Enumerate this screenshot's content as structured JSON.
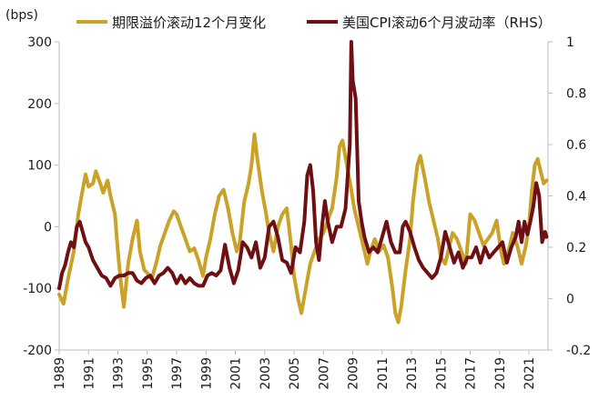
{
  "chart_data": {
    "type": "line",
    "unit_label": "(bps)",
    "right_axis_tag": "RHS",
    "legend": [
      {
        "name": "期限溢价滚动12个月变化",
        "color": "#C9A227",
        "axis": "left"
      },
      {
        "name": "美国CPI滚动6个月波动率（RHS）",
        "color": "#6E0F14",
        "axis": "right"
      }
    ],
    "left_axis": {
      "min": -200,
      "max": 300,
      "ticks": [
        "300",
        "200",
        "100",
        "0",
        "-100",
        "-200"
      ],
      "tick_values": [
        300,
        200,
        100,
        0,
        -100,
        -200
      ]
    },
    "right_axis": {
      "min": -0.2,
      "max": 1.0,
      "ticks": [
        "1",
        "0.8",
        "0.6",
        "0.4",
        "0.2",
        "0",
        "-0.2"
      ],
      "tick_values": [
        1,
        0.8,
        0.6,
        0.4,
        0.2,
        0,
        -0.2
      ]
    },
    "x_axis": {
      "min": 1989,
      "max": 2022.3,
      "ticks": [
        "1989",
        "1991",
        "1993",
        "1995",
        "1997",
        "1999",
        "2001",
        "2003",
        "2005",
        "2007",
        "2009",
        "2011",
        "2013",
        "2015",
        "2017",
        "2019",
        "2021"
      ],
      "tick_values": [
        1989,
        1991,
        1993,
        1995,
        1997,
        1999,
        2001,
        2003,
        2005,
        2007,
        2009,
        2011,
        2013,
        2015,
        2017,
        2019,
        2021
      ]
    },
    "series": [
      {
        "name": "期限溢价滚动12个月变化",
        "axis": "left",
        "points": [
          [
            1989.0,
            -110
          ],
          [
            1989.3,
            -125
          ],
          [
            1989.6,
            -85
          ],
          [
            1990.0,
            -40
          ],
          [
            1990.3,
            20
          ],
          [
            1990.6,
            60
          ],
          [
            1990.8,
            85
          ],
          [
            1991.0,
            65
          ],
          [
            1991.3,
            70
          ],
          [
            1991.5,
            90
          ],
          [
            1991.8,
            70
          ],
          [
            1992.0,
            55
          ],
          [
            1992.3,
            75
          ],
          [
            1992.5,
            50
          ],
          [
            1992.8,
            20
          ],
          [
            1993.0,
            -40
          ],
          [
            1993.2,
            -90
          ],
          [
            1993.4,
            -130
          ],
          [
            1993.7,
            -60
          ],
          [
            1994.0,
            -20
          ],
          [
            1994.3,
            10
          ],
          [
            1994.5,
            -40
          ],
          [
            1994.8,
            -70
          ],
          [
            1995.0,
            -75
          ],
          [
            1995.3,
            -85
          ],
          [
            1995.6,
            -60
          ],
          [
            1995.9,
            -30
          ],
          [
            1996.2,
            -10
          ],
          [
            1996.5,
            10
          ],
          [
            1996.8,
            25
          ],
          [
            1997.0,
            20
          ],
          [
            1997.3,
            0
          ],
          [
            1997.6,
            -20
          ],
          [
            1997.9,
            -40
          ],
          [
            1998.2,
            -35
          ],
          [
            1998.5,
            -55
          ],
          [
            1998.8,
            -80
          ],
          [
            1999.0,
            -50
          ],
          [
            1999.3,
            -20
          ],
          [
            1999.6,
            20
          ],
          [
            1999.9,
            50
          ],
          [
            2000.2,
            60
          ],
          [
            2000.5,
            30
          ],
          [
            2000.8,
            -10
          ],
          [
            2001.1,
            -40
          ],
          [
            2001.3,
            -25
          ],
          [
            2001.6,
            40
          ],
          [
            2001.9,
            70
          ],
          [
            2002.1,
            100
          ],
          [
            2002.3,
            150
          ],
          [
            2002.5,
            110
          ],
          [
            2002.8,
            60
          ],
          [
            2003.1,
            20
          ],
          [
            2003.3,
            -10
          ],
          [
            2003.6,
            -40
          ],
          [
            2003.9,
            0
          ],
          [
            2004.2,
            20
          ],
          [
            2004.5,
            30
          ],
          [
            2004.8,
            -30
          ],
          [
            2005.0,
            -80
          ],
          [
            2005.3,
            -120
          ],
          [
            2005.5,
            -140
          ],
          [
            2005.8,
            -100
          ],
          [
            2006.1,
            -60
          ],
          [
            2006.4,
            -40
          ],
          [
            2006.7,
            -20
          ],
          [
            2007.0,
            -10
          ],
          [
            2007.3,
            10
          ],
          [
            2007.6,
            30
          ],
          [
            2007.9,
            80
          ],
          [
            2008.1,
            130
          ],
          [
            2008.3,
            140
          ],
          [
            2008.6,
            100
          ],
          [
            2008.9,
            60
          ],
          [
            2009.1,
            30
          ],
          [
            2009.4,
            0
          ],
          [
            2009.7,
            -30
          ],
          [
            2010.0,
            -60
          ],
          [
            2010.2,
            -40
          ],
          [
            2010.5,
            -20
          ],
          [
            2010.8,
            -40
          ],
          [
            2011.1,
            -30
          ],
          [
            2011.4,
            -50
          ],
          [
            2011.7,
            -100
          ],
          [
            2011.9,
            -140
          ],
          [
            2012.1,
            -155
          ],
          [
            2012.3,
            -130
          ],
          [
            2012.6,
            -70
          ],
          [
            2012.9,
            -20
          ],
          [
            2013.1,
            40
          ],
          [
            2013.4,
            100
          ],
          [
            2013.6,
            115
          ],
          [
            2013.9,
            80
          ],
          [
            2014.2,
            40
          ],
          [
            2014.5,
            10
          ],
          [
            2014.8,
            -20
          ],
          [
            2015.0,
            -50
          ],
          [
            2015.3,
            -60
          ],
          [
            2015.5,
            -40
          ],
          [
            2015.8,
            -10
          ],
          [
            2016.1,
            -20
          ],
          [
            2016.4,
            -40
          ],
          [
            2016.7,
            -60
          ],
          [
            2017.0,
            20
          ],
          [
            2017.3,
            10
          ],
          [
            2017.6,
            -10
          ],
          [
            2017.9,
            -30
          ],
          [
            2018.2,
            -20
          ],
          [
            2018.5,
            -10
          ],
          [
            2018.8,
            10
          ],
          [
            2019.1,
            -40
          ],
          [
            2019.3,
            -60
          ],
          [
            2019.6,
            -40
          ],
          [
            2019.9,
            -10
          ],
          [
            2020.2,
            -30
          ],
          [
            2020.5,
            -60
          ],
          [
            2020.8,
            -30
          ],
          [
            2021.0,
            0
          ],
          [
            2021.2,
            60
          ],
          [
            2021.4,
            100
          ],
          [
            2021.6,
            110
          ],
          [
            2021.8,
            90
          ],
          [
            2022.0,
            70
          ],
          [
            2022.2,
            75
          ]
        ]
      },
      {
        "name": "美国CPI滚动6个月波动率（RHS）",
        "axis": "right",
        "points": [
          [
            1989.0,
            0.04
          ],
          [
            1989.2,
            0.1
          ],
          [
            1989.4,
            0.13
          ],
          [
            1989.6,
            0.18
          ],
          [
            1989.8,
            0.22
          ],
          [
            1990.0,
            0.2
          ],
          [
            1990.2,
            0.28
          ],
          [
            1990.4,
            0.3
          ],
          [
            1990.6,
            0.26
          ],
          [
            1990.8,
            0.22
          ],
          [
            1991.0,
            0.2
          ],
          [
            1991.3,
            0.15
          ],
          [
            1991.6,
            0.12
          ],
          [
            1991.9,
            0.09
          ],
          [
            1992.2,
            0.08
          ],
          [
            1992.5,
            0.05
          ],
          [
            1992.8,
            0.08
          ],
          [
            1993.1,
            0.09
          ],
          [
            1993.4,
            0.09
          ],
          [
            1993.7,
            0.1
          ],
          [
            1994.0,
            0.1
          ],
          [
            1994.3,
            0.07
          ],
          [
            1994.6,
            0.06
          ],
          [
            1994.9,
            0.08
          ],
          [
            1995.2,
            0.09
          ],
          [
            1995.5,
            0.06
          ],
          [
            1995.8,
            0.09
          ],
          [
            1996.1,
            0.1
          ],
          [
            1996.4,
            0.12
          ],
          [
            1996.7,
            0.1
          ],
          [
            1997.0,
            0.06
          ],
          [
            1997.3,
            0.09
          ],
          [
            1997.6,
            0.06
          ],
          [
            1997.9,
            0.08
          ],
          [
            1998.2,
            0.06
          ],
          [
            1998.5,
            0.05
          ],
          [
            1998.8,
            0.05
          ],
          [
            1999.1,
            0.09
          ],
          [
            1999.4,
            0.1
          ],
          [
            1999.7,
            0.09
          ],
          [
            2000.0,
            0.11
          ],
          [
            2000.3,
            0.21
          ],
          [
            2000.6,
            0.12
          ],
          [
            2000.9,
            0.06
          ],
          [
            2001.2,
            0.11
          ],
          [
            2001.5,
            0.22
          ],
          [
            2001.8,
            0.2
          ],
          [
            2002.1,
            0.16
          ],
          [
            2002.4,
            0.22
          ],
          [
            2002.7,
            0.12
          ],
          [
            2003.0,
            0.16
          ],
          [
            2003.3,
            0.28
          ],
          [
            2003.6,
            0.3
          ],
          [
            2003.9,
            0.24
          ],
          [
            2004.2,
            0.15
          ],
          [
            2004.5,
            0.14
          ],
          [
            2004.8,
            0.1
          ],
          [
            2005.1,
            0.2
          ],
          [
            2005.4,
            0.18
          ],
          [
            2005.7,
            0.3
          ],
          [
            2005.9,
            0.48
          ],
          [
            2006.1,
            0.52
          ],
          [
            2006.3,
            0.42
          ],
          [
            2006.5,
            0.22
          ],
          [
            2006.7,
            0.15
          ],
          [
            2006.9,
            0.28
          ],
          [
            2007.1,
            0.38
          ],
          [
            2007.3,
            0.3
          ],
          [
            2007.6,
            0.22
          ],
          [
            2007.9,
            0.28
          ],
          [
            2008.2,
            0.28
          ],
          [
            2008.5,
            0.35
          ],
          [
            2008.8,
            0.6
          ],
          [
            2008.9,
            1.0
          ],
          [
            2009.0,
            0.85
          ],
          [
            2009.2,
            0.78
          ],
          [
            2009.4,
            0.38
          ],
          [
            2009.6,
            0.3
          ],
          [
            2009.8,
            0.24
          ],
          [
            2010.1,
            0.18
          ],
          [
            2010.4,
            0.2
          ],
          [
            2010.7,
            0.18
          ],
          [
            2011.0,
            0.24
          ],
          [
            2011.3,
            0.3
          ],
          [
            2011.6,
            0.22
          ],
          [
            2011.9,
            0.18
          ],
          [
            2012.2,
            0.18
          ],
          [
            2012.4,
            0.28
          ],
          [
            2012.6,
            0.3
          ],
          [
            2012.9,
            0.26
          ],
          [
            2013.2,
            0.2
          ],
          [
            2013.5,
            0.15
          ],
          [
            2013.8,
            0.12
          ],
          [
            2014.1,
            0.1
          ],
          [
            2014.4,
            0.08
          ],
          [
            2014.7,
            0.1
          ],
          [
            2015.0,
            0.16
          ],
          [
            2015.3,
            0.26
          ],
          [
            2015.6,
            0.2
          ],
          [
            2015.9,
            0.14
          ],
          [
            2016.2,
            0.18
          ],
          [
            2016.5,
            0.12
          ],
          [
            2016.8,
            0.16
          ],
          [
            2017.1,
            0.16
          ],
          [
            2017.4,
            0.2
          ],
          [
            2017.7,
            0.14
          ],
          [
            2018.0,
            0.2
          ],
          [
            2018.3,
            0.16
          ],
          [
            2018.6,
            0.18
          ],
          [
            2018.9,
            0.2
          ],
          [
            2019.2,
            0.22
          ],
          [
            2019.5,
            0.14
          ],
          [
            2019.8,
            0.2
          ],
          [
            2020.1,
            0.24
          ],
          [
            2020.3,
            0.3
          ],
          [
            2020.5,
            0.22
          ],
          [
            2020.7,
            0.3
          ],
          [
            2020.9,
            0.25
          ],
          [
            2021.1,
            0.3
          ],
          [
            2021.3,
            0.36
          ],
          [
            2021.5,
            0.45
          ],
          [
            2021.7,
            0.4
          ],
          [
            2021.9,
            0.22
          ],
          [
            2022.1,
            0.26
          ],
          [
            2022.2,
            0.24
          ]
        ]
      }
    ]
  }
}
